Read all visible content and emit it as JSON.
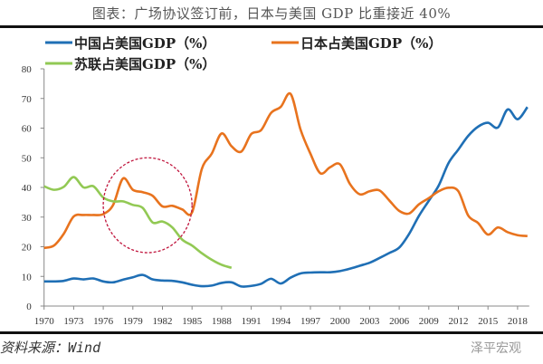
{
  "title": "图表：广场协议签订前，日本与美国 GDP 比重接近 40%",
  "source": "资料来源：Wind",
  "watermark": "泽平宏观",
  "chart_data": {
    "type": "line",
    "xlabel": "",
    "ylabel": "",
    "xlim": [
      1970,
      2019
    ],
    "ylim": [
      0,
      80
    ],
    "yticks": [
      0,
      10,
      20,
      30,
      40,
      50,
      60,
      70,
      80
    ],
    "xticks": [
      "1970",
      "1973",
      "1976",
      "1979",
      "1982",
      "1985",
      "1988",
      "1991",
      "1994",
      "1997",
      "2000",
      "2003",
      "2006",
      "2009",
      "2012",
      "2015",
      "2018"
    ],
    "grid": false,
    "legend": "top",
    "annotation": {
      "type": "dashed-circle",
      "x_range": [
        1976,
        1985
      ],
      "y_range": [
        18,
        50
      ],
      "color": "#c0143c"
    },
    "series": [
      {
        "name": "中国占美国GDP（%）",
        "color": "#1f6fb5",
        "start_year": 1970,
        "values": [
          8.3,
          8.3,
          8.5,
          9.3,
          9.0,
          9.3,
          8.3,
          8.0,
          8.9,
          9.7,
          10.5,
          9.0,
          8.6,
          8.5,
          8.0,
          7.2,
          6.7,
          6.9,
          7.8,
          8.0,
          6.6,
          6.8,
          7.5,
          9.2,
          7.6,
          9.6,
          11.0,
          11.3,
          11.4,
          11.4,
          11.8,
          12.6,
          13.6,
          14.6,
          16.2,
          17.9,
          19.7,
          24.3,
          30.4,
          35.5,
          40.6,
          48.2,
          52.8,
          57.4,
          60.5,
          61.8,
          60.2,
          66.3,
          63.0,
          67.1
        ]
      },
      {
        "name": "日本占美国GDP（%）",
        "color": "#e8731e",
        "start_year": 1970,
        "values": [
          19.6,
          20.4,
          24.4,
          30.2,
          30.7,
          30.7,
          31.0,
          34.1,
          43.0,
          39.2,
          38.4,
          37.2,
          33.6,
          33.8,
          32.6,
          31.6,
          46.3,
          51.4,
          58.2,
          53.9,
          52.1,
          58.0,
          59.3,
          65.1,
          67.2,
          71.5,
          59.5,
          51.4,
          44.8,
          46.8,
          47.8,
          41.2,
          37.7,
          38.7,
          39.0,
          35.6,
          32.1,
          31.2,
          34.3,
          36.4,
          38.7,
          39.9,
          38.7,
          30.5,
          28.0,
          24.1,
          26.5,
          24.9,
          23.9,
          23.6
        ]
      },
      {
        "name": "苏联占美国GDP（%）",
        "color": "#92c954",
        "start_year": 1970,
        "values": [
          40.4,
          39.2,
          40.2,
          43.5,
          40.0,
          40.4,
          36.6,
          35.3,
          35.3,
          34.1,
          33.1,
          28.2,
          28.5,
          26.5,
          22.4,
          20.4,
          17.8,
          15.6,
          13.9,
          12.9
        ]
      }
    ]
  }
}
